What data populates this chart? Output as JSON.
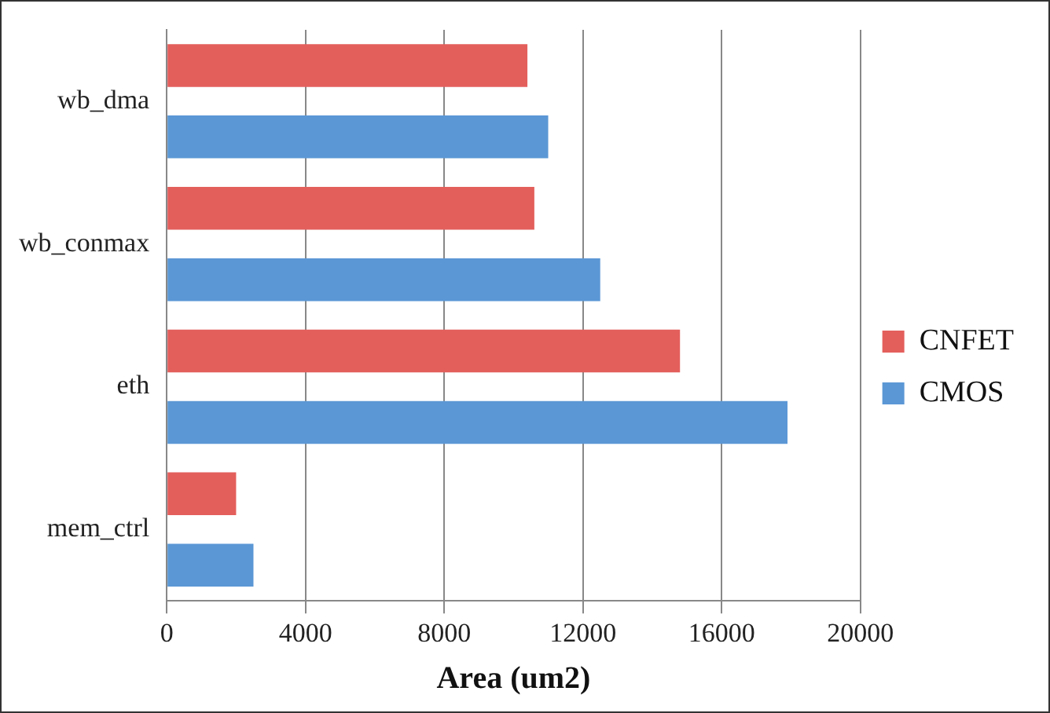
{
  "chart_data": {
    "type": "bar",
    "orientation": "horizontal",
    "xlabel": "Area (um2)",
    "categories": [
      "wb_dma",
      "wb_conmax",
      "eth",
      "mem_ctrl"
    ],
    "series": [
      {
        "name": "CNFET",
        "color": "#e35f5c",
        "values": [
          10400,
          10600,
          14800,
          2000
        ]
      },
      {
        "name": "CMOS",
        "color": "#5b97d5",
        "values": [
          11000,
          12500,
          17900,
          2500
        ]
      }
    ],
    "xlim": [
      0,
      20000
    ],
    "xticks": [
      0,
      4000,
      8000,
      12000,
      16000,
      20000
    ],
    "grid": "x",
    "legend": "right"
  }
}
